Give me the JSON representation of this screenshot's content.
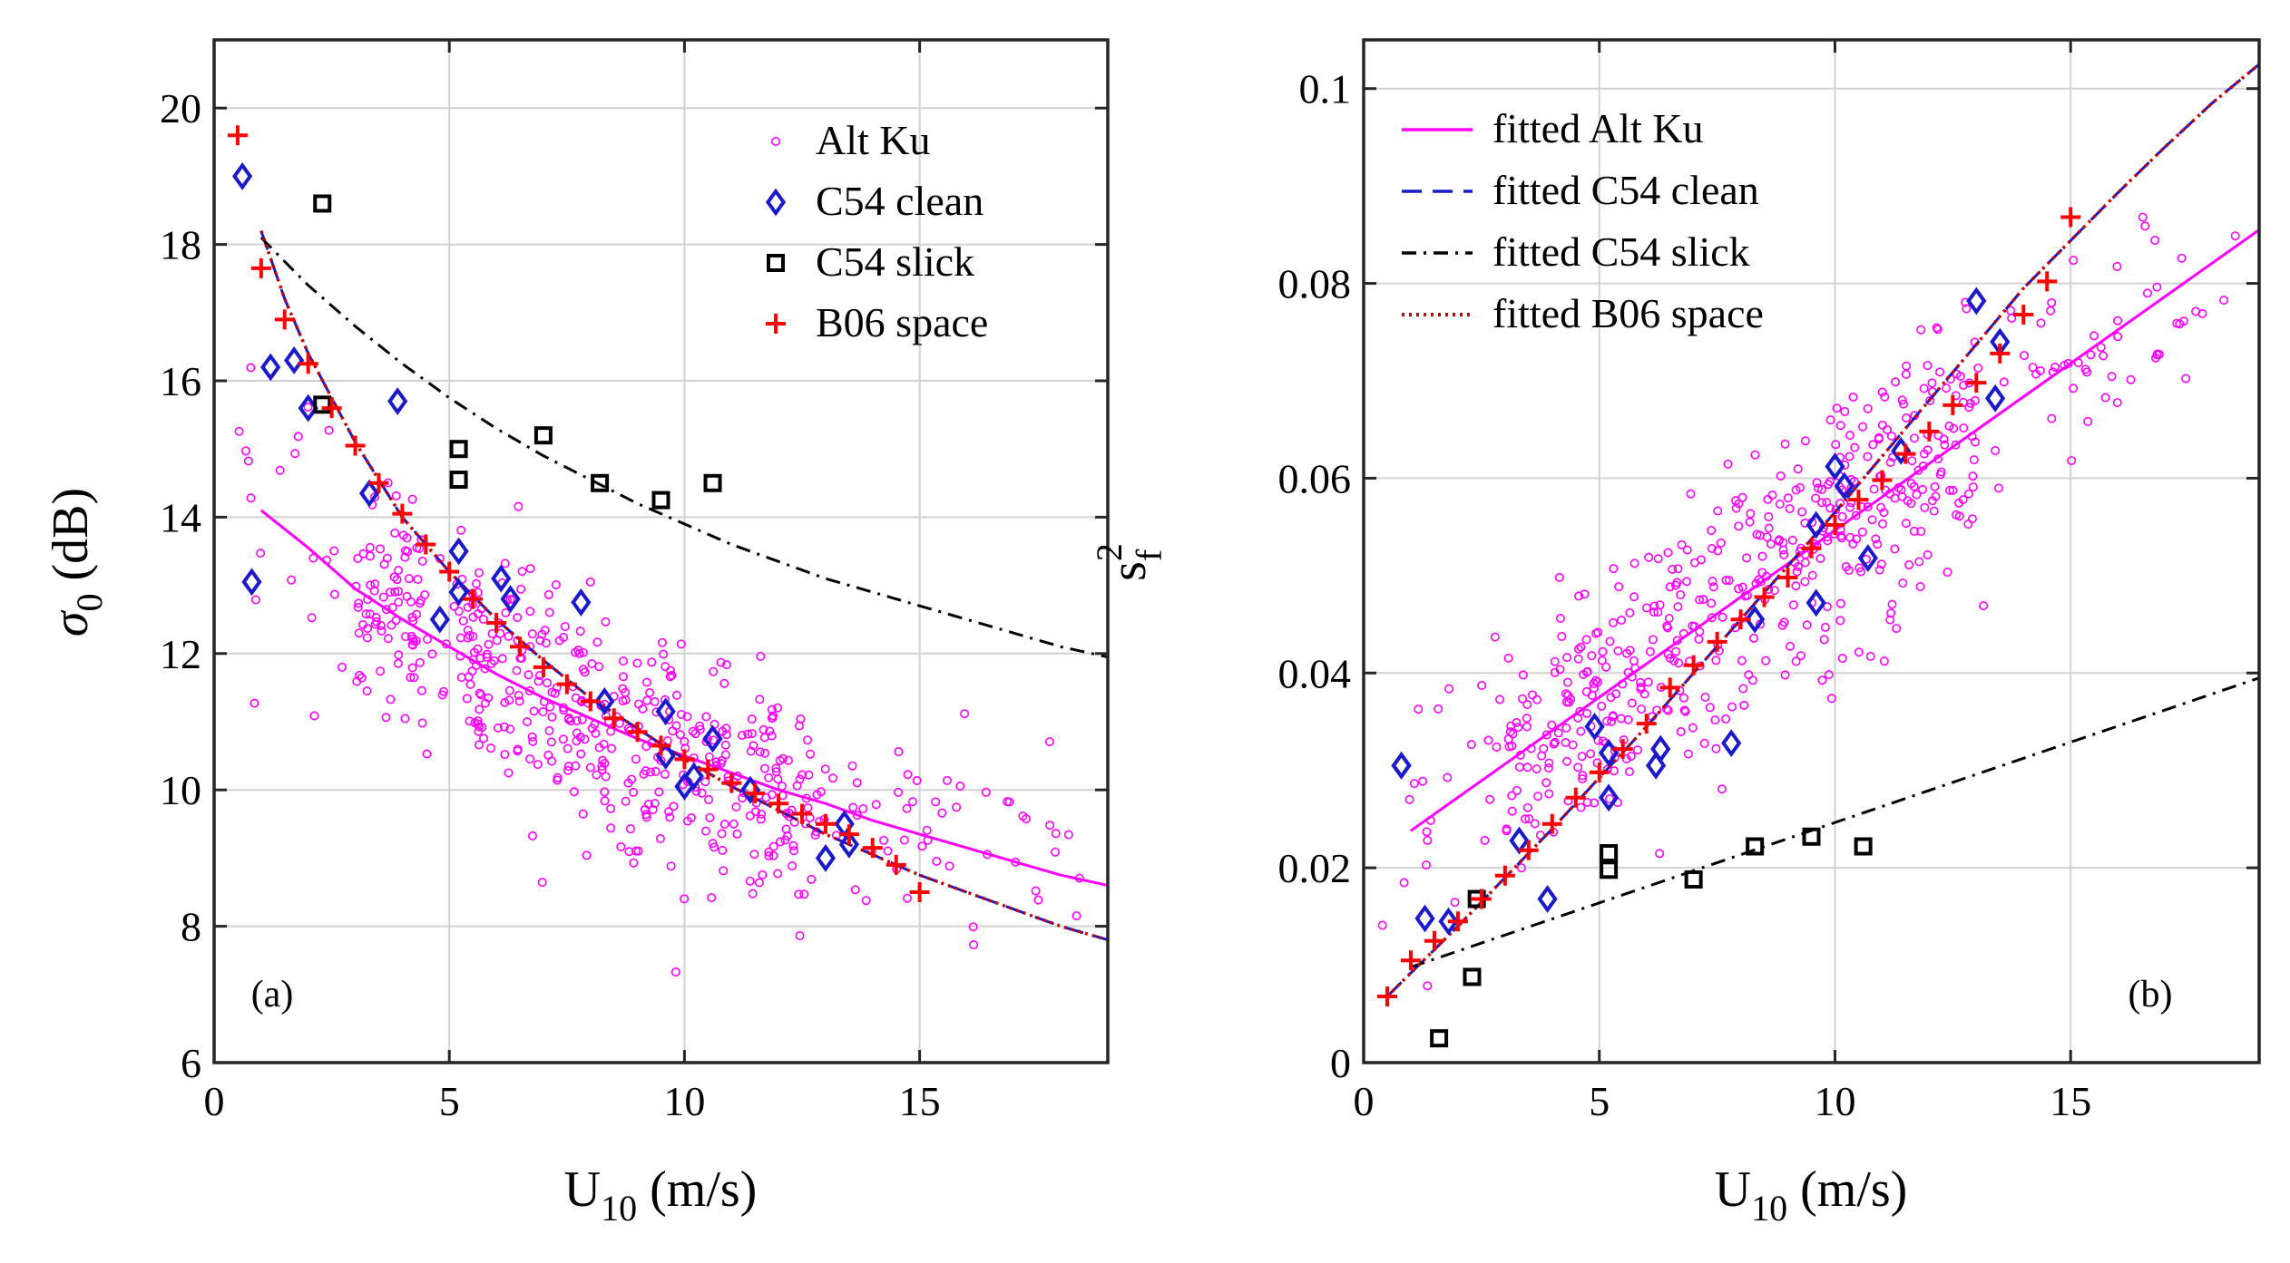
{
  "chart_data": [
    {
      "id": "a",
      "type": "scatter",
      "panel_label": "(a)",
      "xlabel": "U_10 (m/s)",
      "xlabel_main": "U",
      "xlabel_sub": "10",
      "xlabel_rest": " (m/s)",
      "ylabel": "σ_0 (dB)",
      "ylabel_main": "σ",
      "ylabel_sub": "0",
      "ylabel_rest": " (dB)",
      "xlim": [
        0,
        19
      ],
      "ylim": [
        6,
        21
      ],
      "xticks": [
        0,
        5,
        10,
        15
      ],
      "yticks": [
        6,
        8,
        10,
        12,
        14,
        16,
        18,
        20
      ],
      "xtick_labels": [
        "0",
        "5",
        "10",
        "15"
      ],
      "ytick_labels": [
        "6",
        "8",
        "10",
        "12",
        "14",
        "16",
        "18",
        "20"
      ],
      "grid": true,
      "legend_position": "top-right",
      "series": [
        {
          "name": "Alt Ku",
          "marker": "circle",
          "color": "#ff00ff",
          "scatter_cloud": {
            "count": 560,
            "x_range": [
              0.3,
              18.5
            ],
            "trend": "fitted Alt Ku",
            "spread_db": 0.8
          }
        },
        {
          "name": "C54 clean",
          "marker": "diamond",
          "color": "#1a1acc",
          "x": [
            0.6,
            0.8,
            1.2,
            1.7,
            2.0,
            3.3,
            3.9,
            4.8,
            5.2,
            5.2,
            6.1,
            6.3,
            7.8,
            8.3,
            9.6,
            9.6,
            10.0,
            10.2,
            10.6,
            11.4,
            13.0,
            13.4,
            13.5
          ],
          "y": [
            19.0,
            13.05,
            16.2,
            16.3,
            15.6,
            14.35,
            15.7,
            12.5,
            13.5,
            12.9,
            13.1,
            12.8,
            12.75,
            11.3,
            11.15,
            10.5,
            10.05,
            10.2,
            10.75,
            10.0,
            9.0,
            9.5,
            9.2
          ]
        },
        {
          "name": "C54 slick",
          "marker": "square",
          "color": "#000000",
          "x": [
            2.3,
            2.3,
            5.2,
            5.2,
            7.0,
            8.2,
            9.5,
            10.6
          ],
          "y": [
            18.6,
            15.65,
            15.0,
            14.55,
            15.2,
            14.5,
            14.25,
            14.5
          ]
        },
        {
          "name": "B06 space",
          "marker": "plus",
          "color": "#ff0000",
          "x": [
            0.5,
            1.0,
            1.5,
            2.0,
            2.5,
            3.0,
            3.5,
            4.0,
            4.5,
            5.0,
            5.5,
            6.0,
            6.5,
            7.0,
            7.5,
            8.0,
            8.5,
            9.0,
            9.5,
            10.0,
            10.5,
            11.0,
            11.5,
            12.0,
            12.5,
            13.0,
            13.5,
            14.0,
            14.5,
            15.0
          ],
          "y": [
            19.6,
            17.65,
            16.9,
            16.25,
            15.6,
            15.05,
            14.5,
            14.05,
            13.6,
            13.2,
            12.8,
            12.45,
            12.1,
            11.8,
            11.55,
            11.3,
            11.05,
            10.85,
            10.65,
            10.45,
            10.3,
            10.1,
            9.95,
            9.8,
            9.65,
            9.5,
            9.35,
            9.15,
            8.9,
            8.5
          ]
        }
      ],
      "fit_curves": [
        {
          "name": "fitted Alt Ku",
          "style": "solid",
          "color": "#ff00ff",
          "x": [
            1.0,
            2.0,
            3.0,
            4.0,
            5.0,
            6.0,
            7.0,
            8.0,
            9.0,
            10.0,
            11.0,
            12.0,
            13.0,
            14.0,
            15.0,
            16.0,
            17.0,
            18.0,
            19.0
          ],
          "y": [
            14.1,
            13.55,
            12.95,
            12.5,
            12.1,
            11.7,
            11.35,
            11.05,
            10.75,
            10.5,
            10.25,
            10.0,
            9.8,
            9.55,
            9.35,
            9.15,
            8.95,
            8.75,
            8.6
          ]
        },
        {
          "name": "fitted C54 clean",
          "style": "dashed",
          "color": "#1a1acc",
          "x": [
            1.0,
            1.5,
            2.0,
            3.0,
            4.0,
            5.0,
            6.0,
            7.0,
            8.0,
            9.0,
            10.0,
            11.0,
            12.0,
            13.0,
            14.0,
            15.0,
            16.0,
            17.0,
            18.0,
            19.0
          ],
          "y": [
            18.2,
            17.2,
            16.4,
            15.1,
            14.0,
            13.2,
            12.5,
            11.9,
            11.35,
            10.9,
            10.45,
            10.05,
            9.7,
            9.35,
            9.05,
            8.75,
            8.5,
            8.25,
            8.0,
            7.8
          ]
        },
        {
          "name": "fitted C54 slick",
          "style": "dashdot",
          "color": "#000000",
          "x": [
            1.0,
            2.0,
            3.0,
            4.0,
            5.0,
            6.0,
            7.0,
            8.0,
            9.0,
            10.0,
            11.0,
            12.0,
            13.0,
            14.0,
            15.0,
            16.0,
            17.0,
            18.0,
            19.0
          ],
          "y": [
            18.1,
            17.4,
            16.8,
            16.25,
            15.75,
            15.3,
            14.9,
            14.55,
            14.2,
            13.9,
            13.6,
            13.35,
            13.1,
            12.9,
            12.7,
            12.5,
            12.3,
            12.1,
            11.95
          ]
        },
        {
          "name": "fitted B06 space",
          "style": "dotted",
          "color": "#cc0000",
          "x": [
            1.0,
            1.5,
            2.0,
            3.0,
            4.0,
            5.0,
            6.0,
            7.0,
            8.0,
            9.0,
            10.0,
            11.0,
            12.0,
            13.0,
            14.0,
            15.0,
            16.0,
            17.0,
            18.0,
            19.0
          ],
          "y": [
            18.2,
            17.2,
            16.4,
            15.1,
            14.0,
            13.2,
            12.5,
            11.9,
            11.35,
            10.9,
            10.45,
            10.05,
            9.7,
            9.35,
            9.05,
            8.75,
            8.5,
            8.25,
            8.0,
            7.8
          ]
        }
      ],
      "legend": [
        {
          "label": "Alt Ku",
          "marker": "circle",
          "color": "#ff00ff"
        },
        {
          "label": "C54 clean",
          "marker": "diamond",
          "color": "#1a1acc"
        },
        {
          "label": "C54 slick",
          "marker": "square",
          "color": "#000000"
        },
        {
          "label": "B06 space",
          "marker": "plus",
          "color": "#ff0000"
        }
      ]
    },
    {
      "id": "b",
      "type": "scatter",
      "panel_label": "(b)",
      "xlabel": "U_10 (m/s)",
      "xlabel_main": "U",
      "xlabel_sub": "10",
      "xlabel_rest": " (m/s)",
      "ylabel": "s_f^2",
      "ylabel_main": "s",
      "ylabel_sub": "f",
      "ylabel_sup": "2",
      "xlim": [
        0,
        19
      ],
      "ylim": [
        0,
        0.105
      ],
      "xticks": [
        0,
        5,
        10,
        15
      ],
      "yticks": [
        0,
        0.02,
        0.04,
        0.06,
        0.08,
        0.1
      ],
      "xtick_labels": [
        "0",
        "5",
        "10",
        "15"
      ],
      "ytick_labels": [
        "0",
        "0.02",
        "0.04",
        "0.06",
        "0.08",
        "0.1"
      ],
      "grid": true,
      "legend_position": "top-left",
      "series": [
        {
          "name": "Alt Ku",
          "marker": "circle",
          "color": "#ff00ff",
          "scatter_cloud": {
            "count": 560,
            "x_range": [
              0.3,
              18.5
            ],
            "trend": "fitted Alt Ku",
            "spread": 0.0065
          }
        },
        {
          "name": "C54 clean",
          "marker": "diamond",
          "color": "#1a1acc",
          "x": [
            0.8,
            0.8,
            1.3,
            1.8,
            3.3,
            3.9,
            4.9,
            5.2,
            5.2,
            6.2,
            6.3,
            7.8,
            8.3,
            9.6,
            9.6,
            10.0,
            10.2,
            10.7,
            11.4,
            13.0,
            13.4,
            13.5
          ],
          "y": [
            0.0305,
            0.0305,
            0.0148,
            0.0145,
            0.0228,
            0.0168,
            0.0345,
            0.0318,
            0.0272,
            0.0305,
            0.0322,
            0.0328,
            0.0455,
            0.0552,
            0.0472,
            0.0612,
            0.0592,
            0.0518,
            0.0628,
            0.0782,
            0.0682,
            0.074
          ]
        },
        {
          "name": "C54 slick",
          "marker": "square",
          "color": "#000000",
          "x": [
            1.6,
            2.3,
            2.4,
            5.2,
            5.2,
            7.0,
            8.3,
            9.5,
            10.6
          ],
          "y": [
            0.0025,
            0.0088,
            0.0168,
            0.0215,
            0.0198,
            0.0188,
            0.0222,
            0.0232,
            0.0222
          ]
        },
        {
          "name": "B06 space",
          "marker": "plus",
          "color": "#ff0000",
          "x": [
            0.5,
            1.0,
            1.5,
            2.0,
            2.5,
            3.0,
            3.5,
            4.0,
            4.5,
            5.0,
            5.5,
            6.0,
            6.5,
            7.0,
            7.5,
            8.0,
            8.5,
            9.0,
            9.5,
            10.0,
            10.5,
            11.0,
            11.5,
            12.0,
            12.5,
            13.0,
            13.5,
            14.0,
            14.5,
            15.0
          ],
          "y": [
            0.0068,
            0.0105,
            0.0125,
            0.0145,
            0.0168,
            0.0192,
            0.0218,
            0.0245,
            0.0272,
            0.0298,
            0.0322,
            0.0348,
            0.0385,
            0.0408,
            0.0432,
            0.0455,
            0.0478,
            0.0498,
            0.0528,
            0.0552,
            0.0578,
            0.0598,
            0.0625,
            0.0648,
            0.0675,
            0.0698,
            0.0728,
            0.0768,
            0.0802,
            0.0868
          ]
        }
      ],
      "fit_curves": [
        {
          "name": "fitted Alt Ku",
          "style": "solid",
          "color": "#ff00ff",
          "x": [
            1.0,
            19.0
          ],
          "y": [
            0.0238,
            0.0855
          ]
        },
        {
          "name": "fitted C54 clean",
          "style": "dashed",
          "color": "#1a1acc",
          "x": [
            0.5,
            2.0,
            4.0,
            6.0,
            8.0,
            10.0,
            12.0,
            14.0,
            16.0,
            17.0,
            18.0,
            19.0
          ],
          "y": [
            0.0068,
            0.014,
            0.024,
            0.0345,
            0.0455,
            0.0565,
            0.068,
            0.0795,
            0.0893,
            0.094,
            0.0985,
            0.1025
          ]
        },
        {
          "name": "fitted C54 slick",
          "style": "dashdot",
          "color": "#000000",
          "x": [
            1.0,
            19.0
          ],
          "y": [
            0.0098,
            0.0395
          ]
        },
        {
          "name": "fitted B06 space",
          "style": "dotted",
          "color": "#cc0000",
          "x": [
            0.5,
            2.0,
            4.0,
            6.0,
            8.0,
            10.0,
            12.0,
            14.0,
            16.0,
            17.0,
            18.0,
            19.0
          ],
          "y": [
            0.0068,
            0.014,
            0.024,
            0.0345,
            0.0455,
            0.0565,
            0.068,
            0.0795,
            0.0893,
            0.094,
            0.0985,
            0.1025
          ]
        }
      ],
      "legend": [
        {
          "label": "fitted Alt Ku",
          "style": "solid",
          "color": "#ff00ff"
        },
        {
          "label": "fitted C54 clean",
          "style": "dashed",
          "color": "#1a1acc"
        },
        {
          "label": "fitted C54 slick",
          "style": "dashdot",
          "color": "#000000"
        },
        {
          "label": "fitted B06 space",
          "style": "dotted",
          "color": "#cc0000"
        }
      ]
    }
  ]
}
